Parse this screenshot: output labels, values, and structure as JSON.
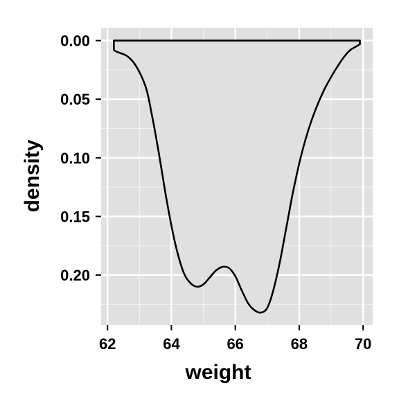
{
  "chart_data": {
    "type": "area",
    "xlabel": "weight",
    "ylabel": "density",
    "xlim": [
      61.8,
      70.3
    ],
    "ylim": [
      -0.011,
      0.2425
    ],
    "y_reversed": true,
    "grid": true,
    "panel_background": "#e0e0e0",
    "grid_color": "#ffffff",
    "line_color": "#000000",
    "x_ticks": [
      62,
      64,
      66,
      68,
      70
    ],
    "x_tick_labels": [
      "62",
      "64",
      "66",
      "68",
      "70"
    ],
    "y_ticks": [
      0.0,
      0.05,
      0.1,
      0.15,
      0.2
    ],
    "y_tick_labels": [
      "0.00",
      "0.05",
      "0.10",
      "0.15",
      "0.20"
    ],
    "series": [
      {
        "x": [
          62.2,
          62.2,
          62.6,
          62.9,
          63.2,
          63.4,
          63.6,
          63.8,
          64.0,
          64.2,
          64.4,
          64.6,
          64.8,
          65.0,
          65.2,
          65.4,
          65.6,
          65.8,
          66.0,
          66.2,
          66.4,
          66.6,
          66.8,
          67.0,
          67.2,
          67.4,
          67.6,
          67.8,
          68.0,
          68.2,
          68.4,
          68.6,
          68.8,
          69.0,
          69.2,
          69.4,
          69.6,
          69.9,
          69.9
        ],
        "y": [
          0.0,
          0.008,
          0.013,
          0.022,
          0.04,
          0.065,
          0.095,
          0.128,
          0.158,
          0.182,
          0.199,
          0.207,
          0.21,
          0.208,
          0.202,
          0.196,
          0.193,
          0.194,
          0.201,
          0.213,
          0.224,
          0.23,
          0.232,
          0.228,
          0.212,
          0.188,
          0.159,
          0.13,
          0.105,
          0.084,
          0.067,
          0.053,
          0.041,
          0.031,
          0.022,
          0.014,
          0.008,
          0.003,
          0.0
        ]
      }
    ]
  }
}
